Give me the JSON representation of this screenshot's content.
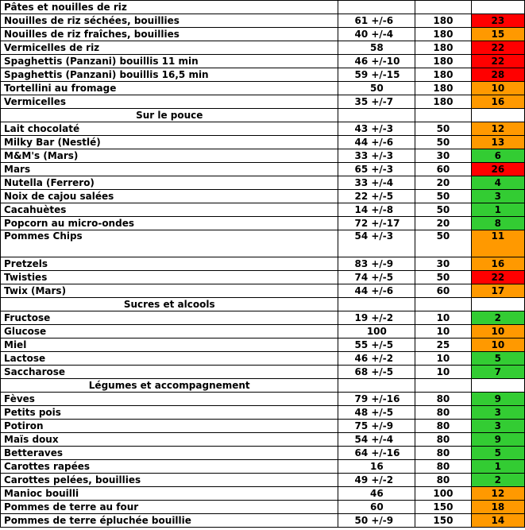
{
  "colors": {
    "red": "#ff0000",
    "orange": "#ff9900",
    "green": "#33cc33"
  },
  "sections": [
    {
      "title": "Pâtes et nouilles de riz",
      "rows": [
        {
          "name": "Nouilles de riz séchées, bouillies",
          "gi": "61 +/-6",
          "portion": "180",
          "load": "23",
          "color": "red"
        },
        {
          "name": "Nouilles de riz fraîches, bouillies",
          "gi": "40 +/-4",
          "portion": "180",
          "load": "15",
          "color": "orange"
        },
        {
          "name": "Vermicelles de riz",
          "gi": "58",
          "portion": "180",
          "load": "22",
          "color": "red"
        },
        {
          "name": "Spaghettis (Panzani) bouillis 11 min",
          "gi": "46 +/-10",
          "portion": "180",
          "load": "22",
          "color": "red"
        },
        {
          "name": "Spaghettis (Panzani) bouillis 16,5 min",
          "gi": "59 +/-15",
          "portion": "180",
          "load": "28",
          "color": "red"
        },
        {
          "name": "Tortellini au fromage",
          "gi": "50",
          "portion": "180",
          "load": "10",
          "color": "orange"
        },
        {
          "name": "Vermicelles",
          "gi": "35 +/-7",
          "portion": "180",
          "load": "16",
          "color": "orange"
        }
      ]
    },
    {
      "title": "Sur le pouce",
      "rows": [
        {
          "name": "Lait chocolaté",
          "gi": "43 +/-3",
          "portion": "50",
          "load": "12",
          "color": "orange"
        },
        {
          "name": "Milky Bar (Nestlé)",
          "gi": "44 +/-6",
          "portion": "50",
          "load": "13",
          "color": "orange"
        },
        {
          "name": "M&M's (Mars)",
          "gi": "33 +/-3",
          "portion": "30",
          "load": "6",
          "color": "green"
        },
        {
          "name": "Mars",
          "gi": "65 +/-3",
          "portion": "60",
          "load": "26",
          "color": "red"
        },
        {
          "name": "Nutella (Ferrero)",
          "gi": "33 +/-4",
          "portion": "20",
          "load": "4",
          "color": "green"
        },
        {
          "name": "Noix de cajou salées",
          "gi": "22 +/-5",
          "portion": "50",
          "load": "3",
          "color": "green"
        },
        {
          "name": "Cacahuètes",
          "gi": "14 +/-8",
          "portion": "50",
          "load": "1",
          "color": "green"
        },
        {
          "name": "Popcorn au micro-ondes",
          "gi": "72 +/-17",
          "portion": "20",
          "load": "8",
          "color": "green"
        },
        {
          "name": "Pommes Chips",
          "gi": "54 +/-3",
          "portion": "50",
          "load": "11",
          "color": "orange",
          "tall": true
        },
        {
          "name": "Pretzels",
          "gi": "83 +/-9",
          "portion": "30",
          "load": "16",
          "color": "orange"
        },
        {
          "name": "Twisties",
          "gi": "74 +/-5",
          "portion": "50",
          "load": "22",
          "color": "red"
        },
        {
          "name": "Twix (Mars)",
          "gi": "44 +/-6",
          "portion": "60",
          "load": "17",
          "color": "orange"
        }
      ]
    },
    {
      "title": "Sucres et alcools",
      "rows": [
        {
          "name": "Fructose",
          "gi": "19 +/-2",
          "portion": "10",
          "load": "2",
          "color": "green"
        },
        {
          "name": "Glucose",
          "gi": "100",
          "portion": "10",
          "load": "10",
          "color": "orange"
        },
        {
          "name": "Miel",
          "gi": "55 +/-5",
          "portion": "25",
          "load": "10",
          "color": "orange"
        },
        {
          "name": "Lactose",
          "gi": "46 +/-2",
          "portion": "10",
          "load": "5",
          "color": "green"
        },
        {
          "name": "Saccharose",
          "gi": "68 +/-5",
          "portion": "10",
          "load": "7",
          "color": "green"
        }
      ]
    },
    {
      "title": "Légumes et accompagnement",
      "rows": [
        {
          "name": "Fèves",
          "gi": "79 +/-16",
          "portion": "80",
          "load": "9",
          "color": "green"
        },
        {
          "name": "Petits pois",
          "gi": "48 +/-5",
          "portion": "80",
          "load": "3",
          "color": "green"
        },
        {
          "name": "Potiron",
          "gi": "75 +/-9",
          "portion": "80",
          "load": "3",
          "color": "green"
        },
        {
          "name": "Maïs doux",
          "gi": "54 +/-4",
          "portion": "80",
          "load": "9",
          "color": "green"
        },
        {
          "name": "Betteraves",
          "gi": "64 +/-16",
          "portion": "80",
          "load": "5",
          "color": "green"
        },
        {
          "name": "Carottes rapées",
          "gi": "16",
          "portion": "80",
          "load": "1",
          "color": "green"
        },
        {
          "name": "Carottes pelées, bouillies",
          "gi": "49 +/-2",
          "portion": "80",
          "load": "2",
          "color": "green"
        },
        {
          "name": "Manioc bouilli",
          "gi": "46",
          "portion": "100",
          "load": "12",
          "color": "orange"
        },
        {
          "name": "Pommes de terre au four",
          "gi": "60",
          "portion": "150",
          "load": "18",
          "color": "orange"
        },
        {
          "name": "Pommes de terre épluchée bouillie",
          "gi": "50 +/-9",
          "portion": "150",
          "load": "14",
          "color": "orange"
        }
      ]
    }
  ]
}
